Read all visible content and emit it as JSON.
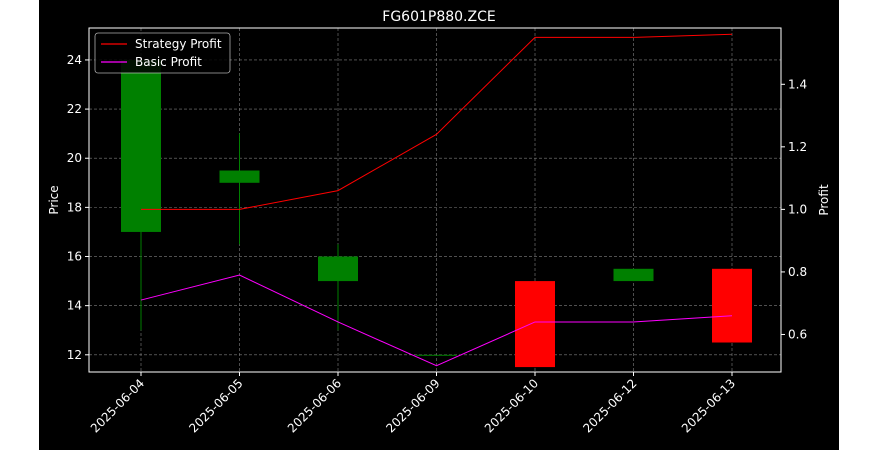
{
  "chart_data": {
    "type": "candlestick",
    "title": "FG601P880.ZCE",
    "xlabel": "",
    "ylabel_left": "Price",
    "ylabel_right": "Profit",
    "categories": [
      "2025-06-04",
      "2025-06-05",
      "2025-06-06",
      "2025-06-09",
      "2025-06-10",
      "2025-06-12",
      "2025-06-13"
    ],
    "ylim_left": [
      11.3,
      25.3
    ],
    "ylim_right": [
      0.48,
      1.58
    ],
    "yticks_left": [
      12,
      14,
      16,
      18,
      20,
      22,
      24
    ],
    "yticks_right": [
      0.6,
      0.8,
      1.0,
      1.2,
      1.4
    ],
    "grid": true,
    "legend_position": "top-left",
    "candles": [
      {
        "date": "2025-06-04",
        "open": 17.0,
        "high": 24.0,
        "low": 13.0,
        "close": 24.0
      },
      {
        "date": "2025-06-05",
        "open": 19.0,
        "high": 21.0,
        "low": 16.5,
        "close": 19.5
      },
      {
        "date": "2025-06-06",
        "open": 15.0,
        "high": 16.5,
        "low": 13.0,
        "close": 16.0
      },
      {
        "date": "2025-06-09",
        "open": 12.0,
        "high": 12.0,
        "low": 12.0,
        "close": 12.0
      },
      {
        "date": "2025-06-10",
        "open": 15.0,
        "high": 15.0,
        "low": 11.5,
        "close": 11.5
      },
      {
        "date": "2025-06-12",
        "open": 15.0,
        "high": 15.5,
        "low": 15.0,
        "close": 15.5
      },
      {
        "date": "2025-06-13",
        "open": 15.5,
        "high": 15.5,
        "low": 12.5,
        "close": 12.5
      }
    ],
    "series": [
      {
        "name": "Strategy Profit",
        "color": "#ff0000",
        "values": [
          1.0,
          1.0,
          1.06,
          1.24,
          1.55,
          1.55,
          1.56
        ]
      },
      {
        "name": "Basic Profit",
        "color": "#ff00ff",
        "values": [
          0.71,
          0.79,
          0.64,
          0.5,
          0.64,
          0.64,
          0.66
        ]
      }
    ],
    "colors": {
      "up": "#008000",
      "down": "#ff0000",
      "background": "#000000",
      "axes": "#ffffff",
      "grid": "#808080"
    }
  }
}
